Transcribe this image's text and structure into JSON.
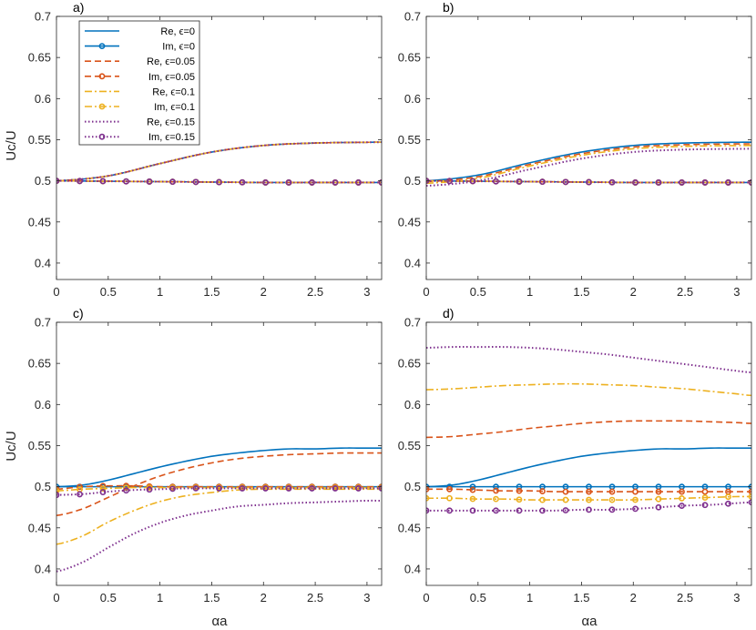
{
  "figure": {
    "xlabel": "αa",
    "ylabel": "Uc/U"
  },
  "legend": {
    "location": "top-left of panel a",
    "entries": [
      {
        "label": "Re, ϵ=0",
        "series_key": "re0"
      },
      {
        "label": "Im, ϵ=0",
        "series_key": "im0"
      },
      {
        "label": "Re, ϵ=0.05",
        "series_key": "re005"
      },
      {
        "label": "Im, ϵ=0.05",
        "series_key": "im005"
      },
      {
        "label": "Re, ϵ=0.1",
        "series_key": "re01"
      },
      {
        "label": "Im, ϵ=0.1",
        "series_key": "im01"
      },
      {
        "label": "Re, ϵ=0.15",
        "series_key": "re015"
      },
      {
        "label": "Im, ϵ=0.15",
        "series_key": "im015"
      }
    ]
  },
  "styles": {
    "re0": {
      "color": "#0072BD",
      "dash": "solid",
      "marker": "none"
    },
    "im0": {
      "color": "#0072BD",
      "dash": "solid",
      "marker": "circle"
    },
    "re005": {
      "color": "#D95319",
      "dash": "dashed",
      "marker": "none"
    },
    "im005": {
      "color": "#D95319",
      "dash": "dashed",
      "marker": "circle"
    },
    "re01": {
      "color": "#EDB120",
      "dash": "dashdot",
      "marker": "none"
    },
    "im01": {
      "color": "#EDB120",
      "dash": "dashdot",
      "marker": "circle"
    },
    "re015": {
      "color": "#7E2F8E",
      "dash": "dotted",
      "marker": "none"
    },
    "im015": {
      "color": "#7E2F8E",
      "dash": "dotted",
      "marker": "circle"
    }
  },
  "chart_data": [
    {
      "type": "line",
      "title": "a)",
      "xlabel": "",
      "ylabel": "Uc/U",
      "xlim": [
        0,
        3.1416
      ],
      "ylim": [
        0.38,
        0.7
      ],
      "xticks": [
        "0",
        "0.5",
        "1",
        "1.5",
        "2",
        "2.5",
        "3"
      ],
      "yticks": [
        "0.4",
        "0.45",
        "0.5",
        "0.55",
        "0.6",
        "0.65",
        "0.7"
      ],
      "x": [
        0,
        0.5,
        1,
        1.5,
        2,
        2.5,
        3.1416
      ],
      "series": [
        {
          "key": "re0",
          "values": [
            0.5,
            0.506,
            0.521,
            0.535,
            0.543,
            0.546,
            0.547
          ]
        },
        {
          "key": "im0",
          "values": [
            0.5,
            0.4995,
            0.499,
            0.4985,
            0.498,
            0.498,
            0.498
          ]
        },
        {
          "key": "re005",
          "values": [
            0.5,
            0.506,
            0.521,
            0.535,
            0.543,
            0.546,
            0.547
          ]
        },
        {
          "key": "im005",
          "values": [
            0.5,
            0.4995,
            0.499,
            0.4985,
            0.498,
            0.498,
            0.498
          ]
        },
        {
          "key": "re01",
          "values": [
            0.5,
            0.506,
            0.521,
            0.535,
            0.543,
            0.546,
            0.547
          ]
        },
        {
          "key": "im01",
          "values": [
            0.5,
            0.4995,
            0.499,
            0.4985,
            0.498,
            0.498,
            0.498
          ]
        },
        {
          "key": "re015",
          "values": [
            0.5,
            0.506,
            0.521,
            0.535,
            0.543,
            0.546,
            0.547
          ]
        },
        {
          "key": "im015",
          "values": [
            0.5,
            0.4995,
            0.499,
            0.4985,
            0.498,
            0.498,
            0.498
          ]
        }
      ]
    },
    {
      "type": "line",
      "title": "b)",
      "xlabel": "",
      "ylabel": "",
      "xlim": [
        0,
        3.1416
      ],
      "ylim": [
        0.38,
        0.7
      ],
      "xticks": [
        "0",
        "0.5",
        "1",
        "1.5",
        "2",
        "2.5",
        "3"
      ],
      "yticks": [
        "0.4",
        "0.45",
        "0.5",
        "0.55",
        "0.6",
        "0.65",
        "0.7"
      ],
      "x": [
        0,
        0.5,
        1,
        1.5,
        2,
        2.5,
        3.1416
      ],
      "series": [
        {
          "key": "re0",
          "values": [
            0.5,
            0.507,
            0.522,
            0.535,
            0.543,
            0.546,
            0.547
          ]
        },
        {
          "key": "im0",
          "values": [
            0.5,
            0.4995,
            0.499,
            0.4985,
            0.498,
            0.498,
            0.498
          ]
        },
        {
          "key": "re005",
          "values": [
            0.499,
            0.505,
            0.52,
            0.533,
            0.541,
            0.544,
            0.545
          ]
        },
        {
          "key": "im005",
          "values": [
            0.5,
            0.4995,
            0.499,
            0.4985,
            0.498,
            0.498,
            0.498
          ]
        },
        {
          "key": "re01",
          "values": [
            0.497,
            0.503,
            0.518,
            0.531,
            0.539,
            0.542,
            0.543
          ]
        },
        {
          "key": "im01",
          "values": [
            0.5,
            0.4995,
            0.499,
            0.4985,
            0.498,
            0.498,
            0.498
          ]
        },
        {
          "key": "re015",
          "values": [
            0.494,
            0.5,
            0.514,
            0.527,
            0.535,
            0.538,
            0.539
          ]
        },
        {
          "key": "im015",
          "values": [
            0.5,
            0.4995,
            0.499,
            0.4985,
            0.498,
            0.498,
            0.498
          ]
        }
      ]
    },
    {
      "type": "line",
      "title": "c)",
      "xlabel": "αa",
      "ylabel": "Uc/U",
      "xlim": [
        0,
        3.1416
      ],
      "ylim": [
        0.38,
        0.7
      ],
      "xticks": [
        "0",
        "0.5",
        "1",
        "1.5",
        "2",
        "2.5",
        "3"
      ],
      "yticks": [
        "0.4",
        "0.45",
        "0.5",
        "0.55",
        "0.6",
        "0.65",
        "0.7"
      ],
      "x": [
        0,
        0.25,
        0.5,
        0.75,
        1,
        1.25,
        1.5,
        1.75,
        2,
        2.25,
        2.5,
        2.75,
        3,
        3.1416
      ],
      "series": [
        {
          "key": "re0",
          "values": [
            0.5,
            0.502,
            0.508,
            0.516,
            0.524,
            0.531,
            0.537,
            0.541,
            0.544,
            0.546,
            0.546,
            0.547,
            0.547,
            0.547
          ]
        },
        {
          "key": "im0",
          "values": [
            0.5,
            0.5,
            0.5,
            0.5,
            0.5,
            0.5,
            0.5,
            0.5,
            0.5,
            0.5,
            0.5,
            0.5,
            0.5,
            0.5
          ]
        },
        {
          "key": "re005",
          "values": [
            0.465,
            0.473,
            0.487,
            0.501,
            0.513,
            0.522,
            0.529,
            0.534,
            0.537,
            0.539,
            0.54,
            0.541,
            0.541,
            0.541
          ]
        },
        {
          "key": "im005",
          "values": [
            0.497,
            0.5,
            0.501,
            0.501,
            0.5,
            0.5,
            0.5,
            0.5,
            0.5,
            0.5,
            0.5,
            0.5,
            0.5,
            0.5
          ]
        },
        {
          "key": "re01",
          "values": [
            0.43,
            0.44,
            0.457,
            0.471,
            0.482,
            0.489,
            0.493,
            0.496,
            0.497,
            0.497,
            0.497,
            0.497,
            0.497,
            0.497
          ]
        },
        {
          "key": "im01",
          "values": [
            0.495,
            0.497,
            0.498,
            0.499,
            0.499,
            0.499,
            0.499,
            0.499,
            0.499,
            0.499,
            0.499,
            0.499,
            0.499,
            0.499
          ]
        },
        {
          "key": "re015",
          "values": [
            0.397,
            0.408,
            0.426,
            0.443,
            0.456,
            0.465,
            0.471,
            0.476,
            0.478,
            0.48,
            0.481,
            0.482,
            0.483,
            0.483
          ]
        },
        {
          "key": "im015",
          "values": [
            0.49,
            0.491,
            0.494,
            0.496,
            0.497,
            0.498,
            0.498,
            0.498,
            0.498,
            0.498,
            0.498,
            0.498,
            0.498,
            0.498
          ]
        }
      ]
    },
    {
      "type": "line",
      "title": "d)",
      "xlabel": "αa",
      "ylabel": "",
      "xlim": [
        0,
        3.1416
      ],
      "ylim": [
        0.38,
        0.7
      ],
      "xticks": [
        "0",
        "0.5",
        "1",
        "1.5",
        "2",
        "2.5",
        "3"
      ],
      "yticks": [
        "0.4",
        "0.45",
        "0.5",
        "0.55",
        "0.6",
        "0.65",
        "0.7"
      ],
      "x": [
        0,
        0.25,
        0.5,
        0.75,
        1,
        1.25,
        1.5,
        1.75,
        2,
        2.25,
        2.5,
        2.75,
        3,
        3.1416
      ],
      "series": [
        {
          "key": "re0",
          "values": [
            0.5,
            0.502,
            0.508,
            0.516,
            0.524,
            0.531,
            0.537,
            0.541,
            0.544,
            0.546,
            0.546,
            0.547,
            0.547,
            0.547
          ]
        },
        {
          "key": "im0",
          "values": [
            0.5,
            0.5,
            0.5,
            0.5,
            0.5,
            0.5,
            0.5,
            0.5,
            0.5,
            0.5,
            0.5,
            0.5,
            0.5,
            0.5
          ]
        },
        {
          "key": "re005",
          "values": [
            0.56,
            0.561,
            0.564,
            0.567,
            0.571,
            0.574,
            0.577,
            0.579,
            0.58,
            0.58,
            0.58,
            0.579,
            0.578,
            0.577
          ]
        },
        {
          "key": "im005",
          "values": [
            0.497,
            0.497,
            0.496,
            0.495,
            0.495,
            0.494,
            0.494,
            0.494,
            0.494,
            0.494,
            0.494,
            0.494,
            0.494,
            0.494
          ]
        },
        {
          "key": "re01",
          "values": [
            0.618,
            0.619,
            0.621,
            0.623,
            0.624,
            0.625,
            0.625,
            0.624,
            0.623,
            0.621,
            0.619,
            0.616,
            0.613,
            0.611
          ]
        },
        {
          "key": "im01",
          "values": [
            0.486,
            0.486,
            0.485,
            0.485,
            0.484,
            0.484,
            0.484,
            0.484,
            0.484,
            0.485,
            0.486,
            0.487,
            0.488,
            0.488
          ]
        },
        {
          "key": "re015",
          "values": [
            0.669,
            0.67,
            0.67,
            0.67,
            0.669,
            0.667,
            0.664,
            0.661,
            0.657,
            0.653,
            0.649,
            0.645,
            0.641,
            0.639
          ]
        },
        {
          "key": "im015",
          "values": [
            0.471,
            0.471,
            0.471,
            0.471,
            0.471,
            0.471,
            0.472,
            0.472,
            0.473,
            0.475,
            0.477,
            0.478,
            0.48,
            0.481
          ]
        }
      ]
    }
  ]
}
